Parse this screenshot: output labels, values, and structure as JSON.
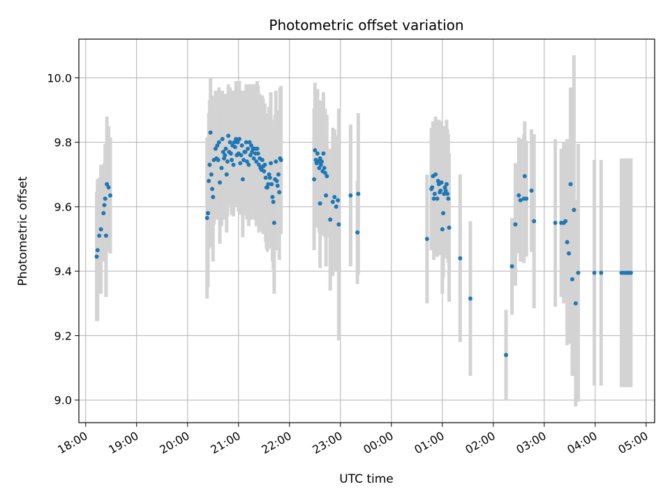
{
  "chart_data": {
    "type": "scatter",
    "title": "Photometric offset variation",
    "xlabel": "UTC time",
    "ylabel": "Photometric offset",
    "x_ticks": [
      "18:00",
      "19:00",
      "20:00",
      "21:00",
      "22:00",
      "23:00",
      "00:00",
      "01:00",
      "02:00",
      "03:00",
      "04:00",
      "05:00"
    ],
    "y_ticks": [
      "9.0",
      "9.2",
      "9.4",
      "9.6",
      "9.8",
      "10.0"
    ],
    "xlim": [
      "17:52",
      "05:10"
    ],
    "ylim": [
      8.93,
      10.12
    ],
    "grid": true,
    "colors": {
      "point": "#1f77b4",
      "errorbar": "#d3d3d3",
      "grid": "#b0b0b0"
    },
    "series": [
      {
        "points": [
          {
            "x": "18:13",
            "y": 9.445,
            "err": 0.2
          },
          {
            "x": "18:14",
            "y": 9.465,
            "err": 0.22
          },
          {
            "x": "18:16",
            "y": 9.51,
            "err": 0.18
          },
          {
            "x": "18:18",
            "y": 9.53,
            "err": 0.2
          },
          {
            "x": "18:21",
            "y": 9.58,
            "err": 0.15
          },
          {
            "x": "18:22",
            "y": 9.605,
            "err": 0.13
          },
          {
            "x": "18:23",
            "y": 9.625,
            "err": 0.17
          },
          {
            "x": "18:24",
            "y": 9.51,
            "err": 0.19
          },
          {
            "x": "18:25",
            "y": 9.67,
            "err": 0.21
          },
          {
            "x": "18:27",
            "y": 9.66,
            "err": 0.19
          },
          {
            "x": "18:29",
            "y": 9.635,
            "err": 0.18
          },
          {
            "x": "20:23",
            "y": 9.565,
            "err": 0.25
          },
          {
            "x": "20:24",
            "y": 9.58,
            "err": 0.23
          },
          {
            "x": "20:25",
            "y": 9.68,
            "err": 0.21
          },
          {
            "x": "20:26",
            "y": 9.73,
            "err": 0.2
          },
          {
            "x": "20:27",
            "y": 9.83,
            "err": 0.17
          },
          {
            "x": "20:28",
            "y": 9.7,
            "err": 0.19
          },
          {
            "x": "20:29",
            "y": 9.655,
            "err": 0.18
          },
          {
            "x": "20:30",
            "y": 9.63,
            "err": 0.2
          },
          {
            "x": "20:31",
            "y": 9.745,
            "err": 0.2
          },
          {
            "x": "20:33",
            "y": 9.78,
            "err": 0.18
          },
          {
            "x": "20:34",
            "y": 9.75,
            "err": 0.19
          },
          {
            "x": "20:35",
            "y": 9.79,
            "err": 0.17
          },
          {
            "x": "20:36",
            "y": 9.745,
            "err": 0.16
          },
          {
            "x": "20:37",
            "y": 9.8,
            "err": 0.17
          },
          {
            "x": "20:38",
            "y": 9.675,
            "err": 0.19
          },
          {
            "x": "20:40",
            "y": 9.72,
            "err": 0.18
          },
          {
            "x": "20:41",
            "y": 9.81,
            "err": 0.15
          },
          {
            "x": "20:42",
            "y": 9.77,
            "err": 0.17
          },
          {
            "x": "20:43",
            "y": 9.75,
            "err": 0.19
          },
          {
            "x": "20:44",
            "y": 9.76,
            "err": 0.18
          },
          {
            "x": "20:45",
            "y": 9.78,
            "err": 0.17
          },
          {
            "x": "20:46",
            "y": 9.7,
            "err": 0.18
          },
          {
            "x": "20:47",
            "y": 9.74,
            "err": 0.17
          },
          {
            "x": "20:48",
            "y": 9.82,
            "err": 0.16
          },
          {
            "x": "20:49",
            "y": 9.77,
            "err": 0.15
          },
          {
            "x": "20:50",
            "y": 9.8,
            "err": 0.17
          },
          {
            "x": "20:51",
            "y": 9.765,
            "err": 0.16
          },
          {
            "x": "20:52",
            "y": 9.745,
            "err": 0.17
          },
          {
            "x": "20:53",
            "y": 9.79,
            "err": 0.17
          },
          {
            "x": "20:54",
            "y": 9.73,
            "err": 0.16
          },
          {
            "x": "20:55",
            "y": 9.8,
            "err": 0.16
          },
          {
            "x": "20:56",
            "y": 9.785,
            "err": 0.17
          },
          {
            "x": "20:57",
            "y": 9.81,
            "err": 0.18
          },
          {
            "x": "20:58",
            "y": 9.76,
            "err": 0.16
          },
          {
            "x": "20:59",
            "y": 9.8,
            "err": 0.18
          },
          {
            "x": "21:00",
            "y": 9.765,
            "err": 0.18
          },
          {
            "x": "21:01",
            "y": 9.81,
            "err": 0.18
          },
          {
            "x": "21:02",
            "y": 9.735,
            "err": 0.16
          },
          {
            "x": "21:03",
            "y": 9.76,
            "err": 0.17
          },
          {
            "x": "21:04",
            "y": 9.79,
            "err": 0.17
          },
          {
            "x": "21:05",
            "y": 9.685,
            "err": 0.18
          },
          {
            "x": "21:06",
            "y": 9.745,
            "err": 0.17
          },
          {
            "x": "21:07",
            "y": 9.77,
            "err": 0.18
          },
          {
            "x": "21:08",
            "y": 9.77,
            "err": 0.19
          },
          {
            "x": "21:09",
            "y": 9.8,
            "err": 0.18
          },
          {
            "x": "21:10",
            "y": 9.74,
            "err": 0.18
          },
          {
            "x": "21:11",
            "y": 9.78,
            "err": 0.19
          },
          {
            "x": "21:12",
            "y": 9.73,
            "err": 0.19
          },
          {
            "x": "21:13",
            "y": 9.8,
            "err": 0.18
          },
          {
            "x": "21:14",
            "y": 9.76,
            "err": 0.2
          },
          {
            "x": "21:15",
            "y": 9.79,
            "err": 0.19
          },
          {
            "x": "21:16",
            "y": 9.77,
            "err": 0.19
          },
          {
            "x": "21:17",
            "y": 9.78,
            "err": 0.18
          },
          {
            "x": "21:18",
            "y": 9.75,
            "err": 0.19
          },
          {
            "x": "21:19",
            "y": 9.78,
            "err": 0.2
          },
          {
            "x": "21:20",
            "y": 9.765,
            "err": 0.2
          },
          {
            "x": "21:21",
            "y": 9.74,
            "err": 0.2
          },
          {
            "x": "21:22",
            "y": 9.78,
            "err": 0.21
          },
          {
            "x": "21:23",
            "y": 9.765,
            "err": 0.21
          },
          {
            "x": "21:24",
            "y": 9.73,
            "err": 0.21
          },
          {
            "x": "21:25",
            "y": 9.75,
            "err": 0.2
          },
          {
            "x": "21:26",
            "y": 9.72,
            "err": 0.19
          },
          {
            "x": "21:27",
            "y": 9.715,
            "err": 0.19
          },
          {
            "x": "21:28",
            "y": 9.745,
            "err": 0.2
          },
          {
            "x": "21:29",
            "y": 9.725,
            "err": 0.21
          },
          {
            "x": "21:30",
            "y": 9.71,
            "err": 0.19
          },
          {
            "x": "21:31",
            "y": 9.73,
            "err": 0.19
          },
          {
            "x": "21:32",
            "y": 9.69,
            "err": 0.2
          },
          {
            "x": "21:33",
            "y": 9.66,
            "err": 0.19
          },
          {
            "x": "21:34",
            "y": 9.66,
            "err": 0.2
          },
          {
            "x": "21:35",
            "y": 9.67,
            "err": 0.2
          },
          {
            "x": "21:36",
            "y": 9.7,
            "err": 0.21
          },
          {
            "x": "21:37",
            "y": 9.69,
            "err": 0.19
          },
          {
            "x": "21:38",
            "y": 9.735,
            "err": 0.22
          },
          {
            "x": "21:39",
            "y": 9.67,
            "err": 0.2
          },
          {
            "x": "21:40",
            "y": 9.63,
            "err": 0.2
          },
          {
            "x": "21:41",
            "y": 9.615,
            "err": 0.21
          },
          {
            "x": "21:42",
            "y": 9.55,
            "err": 0.22
          },
          {
            "x": "21:43",
            "y": 9.685,
            "err": 0.2
          },
          {
            "x": "21:44",
            "y": 9.74,
            "err": 0.22
          },
          {
            "x": "21:45",
            "y": 9.68,
            "err": 0.21
          },
          {
            "x": "21:46",
            "y": 9.665,
            "err": 0.2
          },
          {
            "x": "21:47",
            "y": 9.7,
            "err": 0.2
          },
          {
            "x": "21:48",
            "y": 9.645,
            "err": 0.21
          },
          {
            "x": "21:49",
            "y": 9.75,
            "err": 0.22
          },
          {
            "x": "21:50",
            "y": 9.745,
            "err": 0.23
          },
          {
            "x": "22:29",
            "y": 9.685,
            "err": 0.22
          },
          {
            "x": "22:30",
            "y": 9.775,
            "err": 0.21
          },
          {
            "x": "22:31",
            "y": 9.745,
            "err": 0.19
          },
          {
            "x": "22:32",
            "y": 9.735,
            "err": 0.2
          },
          {
            "x": "22:33",
            "y": 9.765,
            "err": 0.2
          },
          {
            "x": "22:34",
            "y": 9.74,
            "err": 0.19
          },
          {
            "x": "22:35",
            "y": 9.72,
            "err": 0.2
          },
          {
            "x": "22:36",
            "y": 9.75,
            "err": 0.18
          },
          {
            "x": "22:37",
            "y": 9.73,
            "err": 0.19
          },
          {
            "x": "22:38",
            "y": 9.74,
            "err": 0.18
          },
          {
            "x": "22:39",
            "y": 9.71,
            "err": 0.2
          },
          {
            "x": "22:40",
            "y": 9.765,
            "err": 0.19
          },
          {
            "x": "22:41",
            "y": 9.72,
            "err": 0.18
          },
          {
            "x": "22:42",
            "y": 9.705,
            "err": 0.2
          },
          {
            "x": "22:44",
            "y": 9.695,
            "err": 0.19
          },
          {
            "x": "22:36",
            "y": 9.61,
            "err": 0.2
          },
          {
            "x": "22:43",
            "y": 9.635,
            "err": 0.22
          },
          {
            "x": "22:48",
            "y": 9.56,
            "err": 0.22
          },
          {
            "x": "22:51",
            "y": 9.615,
            "err": 0.23
          },
          {
            "x": "22:53",
            "y": 9.63,
            "err": 0.21
          },
          {
            "x": "22:55",
            "y": 9.6,
            "err": 0.2
          },
          {
            "x": "22:57",
            "y": 9.62,
            "err": 0.2
          },
          {
            "x": "22:58",
            "y": 9.545,
            "err": 0.36
          },
          {
            "x": "23:12",
            "y": 9.635,
            "err": 0.22
          },
          {
            "x": "23:20",
            "y": 9.52,
            "err": 0.16
          },
          {
            "x": "23:21",
            "y": 9.64,
            "err": 0.25
          },
          {
            "x": "00:42",
            "y": 9.5,
            "err": 0.2
          },
          {
            "x": "00:47",
            "y": 9.655,
            "err": 0.19
          },
          {
            "x": "00:48",
            "y": 9.66,
            "err": 0.18
          },
          {
            "x": "00:49",
            "y": 9.695,
            "err": 0.17
          },
          {
            "x": "00:50",
            "y": 9.625,
            "err": 0.19
          },
          {
            "x": "00:51",
            "y": 9.64,
            "err": 0.18
          },
          {
            "x": "00:52",
            "y": 9.7,
            "err": 0.18
          },
          {
            "x": "00:54",
            "y": 9.625,
            "err": 0.18
          },
          {
            "x": "00:55",
            "y": 9.68,
            "err": 0.19
          },
          {
            "x": "00:56",
            "y": 9.67,
            "err": 0.2
          },
          {
            "x": "00:57",
            "y": 9.645,
            "err": 0.19
          },
          {
            "x": "00:58",
            "y": 9.65,
            "err": 0.2
          },
          {
            "x": "00:59",
            "y": 9.675,
            "err": 0.19
          },
          {
            "x": "01:00",
            "y": 9.53,
            "err": 0.2
          },
          {
            "x": "01:01",
            "y": 9.58,
            "err": 0.2
          },
          {
            "x": "01:02",
            "y": 9.64,
            "err": 0.2
          },
          {
            "x": "01:03",
            "y": 9.66,
            "err": 0.19
          },
          {
            "x": "01:04",
            "y": 9.65,
            "err": 0.2
          },
          {
            "x": "01:05",
            "y": 9.67,
            "err": 0.2
          },
          {
            "x": "01:06",
            "y": 9.64,
            "err": 0.2
          },
          {
            "x": "01:07",
            "y": 9.625,
            "err": 0.2
          },
          {
            "x": "01:08",
            "y": 9.535,
            "err": 0.23
          },
          {
            "x": "01:21",
            "y": 9.44,
            "err": 0.26
          },
          {
            "x": "01:33",
            "y": 9.315,
            "err": 0.24
          },
          {
            "x": "02:15",
            "y": 9.14,
            "err": 0.14
          },
          {
            "x": "02:22",
            "y": 9.415,
            "err": 0.15
          },
          {
            "x": "02:26",
            "y": 9.545,
            "err": 0.19
          },
          {
            "x": "02:30",
            "y": 9.635,
            "err": 0.18
          },
          {
            "x": "02:32",
            "y": 9.62,
            "err": 0.19
          },
          {
            "x": "02:36",
            "y": 9.625,
            "err": 0.2
          },
          {
            "x": "02:37",
            "y": 9.695,
            "err": 0.17
          },
          {
            "x": "02:39",
            "y": 9.625,
            "err": 0.18
          },
          {
            "x": "02:45",
            "y": 9.65,
            "err": 0.19
          },
          {
            "x": "02:48",
            "y": 9.555,
            "err": 0.27
          },
          {
            "x": "03:13",
            "y": 9.55,
            "err": 0.26
          },
          {
            "x": "03:20",
            "y": 9.55,
            "err": 0.23
          },
          {
            "x": "03:23",
            "y": 9.55,
            "err": 0.25
          },
          {
            "x": "03:25",
            "y": 9.555,
            "err": 0.23
          },
          {
            "x": "03:27",
            "y": 9.49,
            "err": 0.32
          },
          {
            "x": "03:29",
            "y": 9.455,
            "err": 0.28
          },
          {
            "x": "03:31",
            "y": 9.67,
            "err": 0.3
          },
          {
            "x": "03:33",
            "y": 9.375,
            "err": 0.3
          },
          {
            "x": "03:35",
            "y": 9.59,
            "err": 0.48
          },
          {
            "x": "03:37",
            "y": 9.3,
            "err": 0.32
          },
          {
            "x": "03:40",
            "y": 9.395,
            "err": 0.4
          },
          {
            "x": "03:59",
            "y": 9.395,
            "err": 0.35
          },
          {
            "x": "04:07",
            "y": 9.395,
            "err": 0.35
          },
          {
            "x": "04:31",
            "y": 9.395,
            "err": 0.355
          },
          {
            "x": "04:34",
            "y": 9.395,
            "err": 0.355
          },
          {
            "x": "04:37",
            "y": 9.395,
            "err": 0.355
          },
          {
            "x": "04:39",
            "y": 9.395,
            "err": 0.355
          },
          {
            "x": "04:42",
            "y": 9.395,
            "err": 0.355
          }
        ]
      }
    ]
  }
}
